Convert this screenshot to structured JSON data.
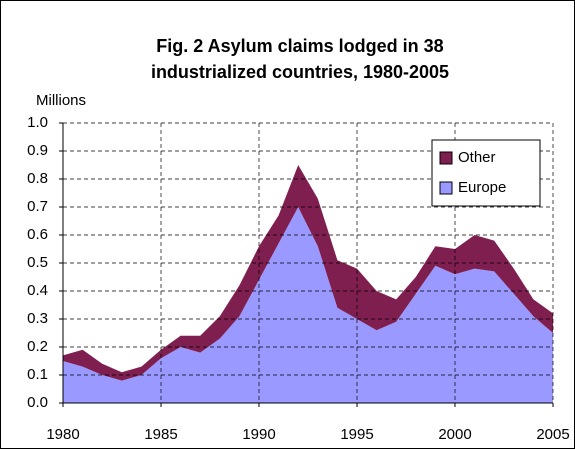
{
  "chart_data": {
    "type": "stacked_area",
    "title": [
      "Fig. 2 Asylum claims lodged in 38",
      "industrialized countries, 1980-2005"
    ],
    "y_label": "Millions",
    "x": [
      1980,
      1981,
      1982,
      1983,
      1984,
      1985,
      1986,
      1987,
      1988,
      1989,
      1990,
      1991,
      1992,
      1993,
      1994,
      1995,
      1996,
      1997,
      1998,
      1999,
      2000,
      2001,
      2002,
      2003,
      2004,
      2005
    ],
    "series": [
      {
        "name": "Europe",
        "color": "#9999ff",
        "values": [
          0.15,
          0.13,
          0.1,
          0.08,
          0.1,
          0.16,
          0.2,
          0.18,
          0.23,
          0.31,
          0.44,
          0.57,
          0.7,
          0.56,
          0.34,
          0.3,
          0.26,
          0.29,
          0.39,
          0.49,
          0.46,
          0.48,
          0.47,
          0.39,
          0.31,
          0.25
        ]
      },
      {
        "name": "Other",
        "color": "#7f1f4f",
        "values": [
          0.02,
          0.06,
          0.04,
          0.03,
          0.03,
          0.03,
          0.04,
          0.06,
          0.08,
          0.11,
          0.12,
          0.1,
          0.15,
          0.17,
          0.17,
          0.18,
          0.14,
          0.08,
          0.06,
          0.07,
          0.09,
          0.12,
          0.11,
          0.09,
          0.06,
          0.07
        ]
      }
    ],
    "xlim": [
      1980,
      2005
    ],
    "xticks": [
      1980,
      1985,
      1990,
      1995,
      2000,
      2005
    ],
    "ylim": [
      0,
      1
    ],
    "yticks": [
      {
        "value": 0,
        "label": "0.0"
      },
      0.1,
      0.2,
      0.3,
      0.4,
      0.5,
      0.6,
      0.7,
      0.8,
      0.9,
      {
        "value": 1,
        "label": "1.0"
      }
    ],
    "grid": true,
    "legend": "upper right"
  }
}
